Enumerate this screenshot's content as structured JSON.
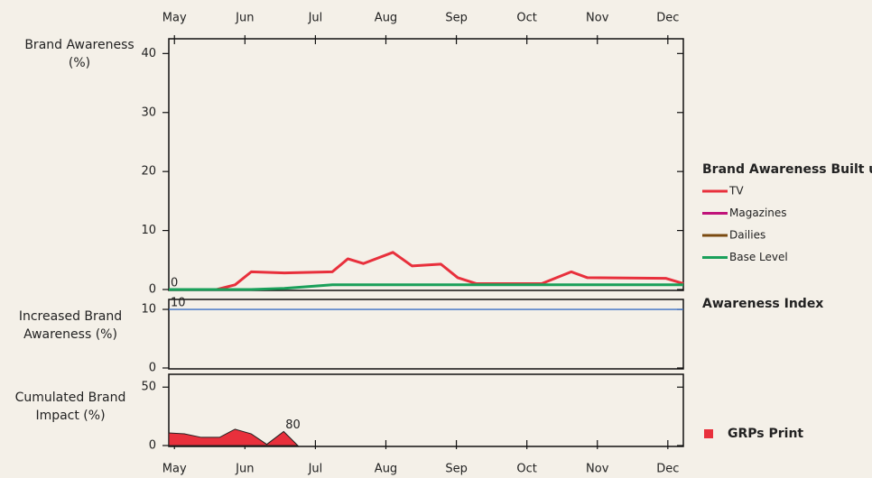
{
  "chart_data": [
    {
      "type": "line",
      "y_label": "Brand Awareness (%)",
      "legend_title": "Brand Awareness Built up",
      "xlim": [
        -0.08,
        7.22
      ],
      "xticks": [
        {
          "value": 0,
          "label": "May"
        },
        {
          "value": 1,
          "label": "Jun"
        },
        {
          "value": 2,
          "label": "Jul"
        },
        {
          "value": 3,
          "label": "Aug"
        },
        {
          "value": 4,
          "label": "Sep"
        },
        {
          "value": 5,
          "label": "Oct"
        },
        {
          "value": 6,
          "label": "Nov"
        },
        {
          "value": 7,
          "label": "Dec"
        }
      ],
      "ylim": [
        0,
        42.5
      ],
      "yticks": [
        0,
        10,
        20,
        30,
        40
      ],
      "x": [
        -0.08,
        0.6,
        0.86,
        1.09,
        1.56,
        2.24,
        2.46,
        2.68,
        3.1,
        3.37,
        3.78,
        4.02,
        4.28,
        5.21,
        5.63,
        5.86,
        6.97,
        7.22
      ],
      "series": [
        {
          "name": "TV",
          "color": "#e8303c",
          "values": [
            0,
            0,
            0.8,
            3,
            2.8,
            3,
            5.2,
            4.4,
            6.3,
            4,
            4.3,
            2,
            1,
            1,
            3,
            2,
            1.9,
            1
          ]
        },
        {
          "name": "Magazines",
          "color": "#c0137a",
          "values": [
            null,
            null,
            null,
            null,
            null,
            null,
            null,
            null,
            null,
            null,
            null,
            null,
            null,
            null,
            null,
            null,
            null,
            null
          ]
        },
        {
          "name": "Dailies",
          "color": "#7a4a10",
          "values": [
            null,
            null,
            null,
            null,
            null,
            null,
            null,
            null,
            null,
            null,
            null,
            null,
            null,
            null,
            null,
            null,
            null,
            null
          ]
        },
        {
          "name": "Base Level",
          "color": "#1aa05a",
          "values": [
            0,
            0,
            0,
            0,
            0.2,
            0.8,
            0.8,
            0.8,
            0.8,
            0.8,
            0.8,
            0.8,
            0.8,
            0.8,
            0.8,
            0.8,
            0.8,
            0.8
          ]
        }
      ],
      "annotations": [
        {
          "text": "0",
          "x": -0.08,
          "y": 0
        }
      ]
    },
    {
      "type": "line",
      "y_label": "Increased Brand Awareness (%)",
      "legend_title": "Awareness Index",
      "xlim": [
        -0.08,
        7.22
      ],
      "ylim": [
        0,
        11.7
      ],
      "yticks": [
        0,
        10
      ],
      "x": [
        -0.08,
        7.22
      ],
      "series": [
        {
          "color": "#3a6fc4",
          "values": [
            10,
            10
          ]
        }
      ],
      "annotations": [
        {
          "text": "10",
          "x": -0.08,
          "y": 10
        }
      ]
    },
    {
      "type": "area",
      "y_label": "Cumulated Brand Impact (%)",
      "xlim": [
        -0.08,
        7.22
      ],
      "xticks": [
        {
          "value": 0,
          "label": "May"
        },
        {
          "value": 1,
          "label": "Jun"
        },
        {
          "value": 2,
          "label": "Jul"
        },
        {
          "value": 3,
          "label": "Aug"
        },
        {
          "value": 4,
          "label": "Sep"
        },
        {
          "value": 5,
          "label": "Oct"
        },
        {
          "value": 6,
          "label": "Nov"
        },
        {
          "value": 7,
          "label": "Dec"
        }
      ],
      "ylim": [
        0,
        61
      ],
      "yticks": [
        0,
        50
      ],
      "x": [
        -0.08,
        0.14,
        0.38,
        0.64,
        0.86,
        1.09,
        1.31,
        1.55,
        1.75
      ],
      "series": [
        {
          "name": "GRPs Print",
          "color": "#e8303c",
          "values": [
            10.8,
            10,
            7,
            7,
            14,
            10,
            1,
            12,
            0
          ]
        }
      ],
      "annotations": [
        {
          "text": "80",
          "x": 1.55,
          "y": 12
        }
      ]
    }
  ]
}
